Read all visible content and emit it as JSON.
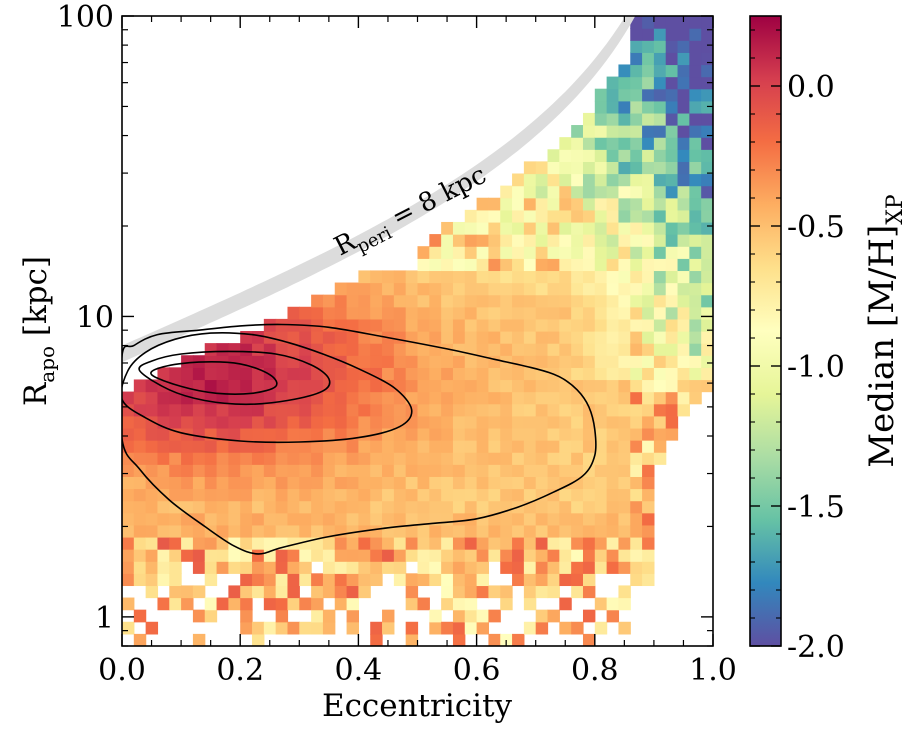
{
  "chart_data": {
    "type": "heatmap",
    "title": "",
    "xlabel": "Eccentricity",
    "ylabel": {
      "main": "R",
      "sub": "apo",
      "unit": " [kpc]"
    },
    "xlim": [
      0.0,
      1.0
    ],
    "ylim": [
      0.8,
      100
    ],
    "yscale": "log",
    "x_ticks": [
      "0.0",
      "0.2",
      "0.4",
      "0.6",
      "0.8",
      "1.0"
    ],
    "y_ticks": [
      "1",
      "10",
      "100"
    ],
    "colorbar": {
      "label": {
        "main": "Median [M/H]",
        "sub": "XP"
      },
      "range": [
        -2.0,
        0.25
      ],
      "ticks": [
        "0.0",
        "-0.5",
        "-1.0",
        "-1.5",
        "-2.0"
      ],
      "cmap": "Spectral"
    },
    "annotation": {
      "main": "R",
      "sub": "peri",
      "rest": " = 8 kpc"
    },
    "grid": "off",
    "peak": {
      "eccentricity": 0.15,
      "r_apo_kpc": 6.5,
      "median_mh": 0.15
    },
    "contours": [
      {
        "level": "outer",
        "points": [
          [
            0.0,
            3.9
          ],
          [
            0.03,
            3.1
          ],
          [
            0.08,
            2.45
          ],
          [
            0.14,
            2.0
          ],
          [
            0.19,
            1.72
          ],
          [
            0.23,
            1.62
          ],
          [
            0.27,
            1.7
          ],
          [
            0.35,
            1.85
          ],
          [
            0.45,
            1.98
          ],
          [
            0.53,
            2.05
          ],
          [
            0.6,
            2.12
          ],
          [
            0.67,
            2.32
          ],
          [
            0.73,
            2.6
          ],
          [
            0.78,
            2.95
          ],
          [
            0.8,
            3.45
          ],
          [
            0.8,
            4.2
          ],
          [
            0.79,
            5.0
          ],
          [
            0.77,
            5.7
          ],
          [
            0.74,
            6.3
          ],
          [
            0.7,
            6.7
          ],
          [
            0.63,
            7.2
          ],
          [
            0.55,
            7.8
          ],
          [
            0.45,
            8.5
          ],
          [
            0.35,
            9.2
          ],
          [
            0.27,
            9.4
          ],
          [
            0.2,
            9.3
          ],
          [
            0.13,
            9.0
          ],
          [
            0.06,
            8.7
          ],
          [
            0.02,
            8.0
          ],
          [
            0.0,
            7.4
          ]
        ]
      },
      {
        "level": "middle",
        "points": [
          [
            0.0,
            5.3
          ],
          [
            0.04,
            4.6
          ],
          [
            0.1,
            4.1
          ],
          [
            0.2,
            3.85
          ],
          [
            0.3,
            3.82
          ],
          [
            0.4,
            3.95
          ],
          [
            0.47,
            4.3
          ],
          [
            0.49,
            4.9
          ],
          [
            0.46,
            5.8
          ],
          [
            0.4,
            6.7
          ],
          [
            0.34,
            7.5
          ],
          [
            0.28,
            8.2
          ],
          [
            0.22,
            8.7
          ],
          [
            0.15,
            8.8
          ],
          [
            0.09,
            8.4
          ],
          [
            0.04,
            7.6
          ],
          [
            0.01,
            6.6
          ]
        ]
      },
      {
        "level": "inner",
        "points": [
          [
            0.03,
            6.6
          ],
          [
            0.08,
            5.7
          ],
          [
            0.14,
            5.25
          ],
          [
            0.21,
            5.1
          ],
          [
            0.28,
            5.25
          ],
          [
            0.34,
            5.65
          ],
          [
            0.35,
            6.2
          ],
          [
            0.32,
            6.9
          ],
          [
            0.26,
            7.5
          ],
          [
            0.18,
            7.65
          ],
          [
            0.1,
            7.5
          ],
          [
            0.05,
            7.1
          ]
        ]
      },
      {
        "level": "core",
        "points": [
          [
            0.05,
            6.4
          ],
          [
            0.1,
            5.85
          ],
          [
            0.16,
            5.55
          ],
          [
            0.22,
            5.55
          ],
          [
            0.26,
            5.85
          ],
          [
            0.25,
            6.4
          ],
          [
            0.2,
            6.95
          ],
          [
            0.13,
            7.05
          ],
          [
            0.07,
            6.8
          ]
        ]
      }
    ]
  }
}
